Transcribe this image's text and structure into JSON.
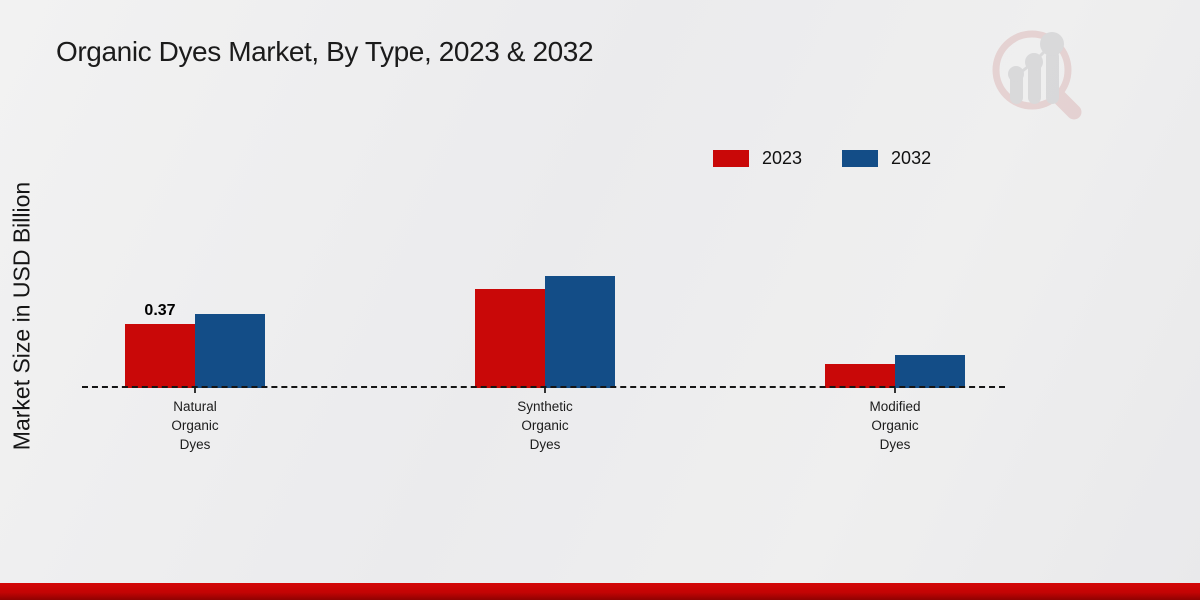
{
  "chart_data": {
    "type": "bar",
    "title": "Organic Dyes Market, By Type, 2023 & 2032",
    "ylabel": "Market Size in USD Billion",
    "xlabel": "",
    "categories": [
      "Natural Organic Dyes",
      "Synthetic Organic Dyes",
      "Modified Organic Dyes"
    ],
    "series": [
      {
        "name": "2023",
        "color": "#c90808",
        "values": [
          0.37,
          0.57,
          0.14
        ],
        "labels": [
          "0.37",
          "",
          ""
        ]
      },
      {
        "name": "2032",
        "color": "#134d87",
        "values": [
          0.43,
          0.65,
          0.19
        ],
        "labels": [
          "",
          "",
          ""
        ]
      }
    ],
    "ylim": [
      0,
      0.8
    ],
    "grid": false,
    "legend_position": "top-right",
    "baseline_style": "dashed",
    "visible_data_labels": [
      {
        "series": "2023",
        "category": "Natural Organic Dyes",
        "text": "0.37"
      }
    ]
  },
  "footer": {
    "band_color": "#c30404"
  },
  "logo": {
    "name": "magnifier-bar-chart-logo",
    "accent_color": "#cf9191",
    "bar_color": "#a7a7ad"
  }
}
